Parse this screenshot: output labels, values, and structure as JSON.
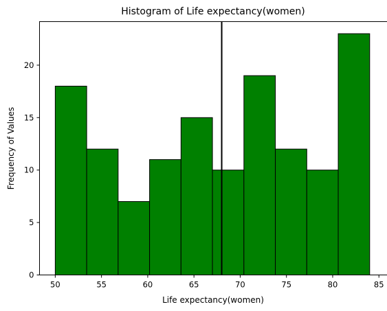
{
  "chart_data": {
    "type": "bar",
    "title": "Histogram of Life expectancy(women)",
    "xlabel": "Life expectancy(women)",
    "ylabel": "Frequency of Values",
    "xlim": [
      48.3,
      85.8
    ],
    "ylim": [
      0,
      24.15
    ],
    "x_ticks": [
      50,
      55,
      60,
      65,
      70,
      75,
      80,
      85
    ],
    "y_ticks": [
      0,
      5,
      10,
      15,
      20
    ],
    "bins": [
      {
        "start": 50.0,
        "end": 53.4,
        "count": 18
      },
      {
        "start": 53.4,
        "end": 56.8,
        "count": 12
      },
      {
        "start": 56.8,
        "end": 60.2,
        "count": 7
      },
      {
        "start": 60.2,
        "end": 63.6,
        "count": 11
      },
      {
        "start": 63.6,
        "end": 67.0,
        "count": 15
      },
      {
        "start": 67.0,
        "end": 70.4,
        "count": 10
      },
      {
        "start": 70.4,
        "end": 73.8,
        "count": 19
      },
      {
        "start": 73.8,
        "end": 77.2,
        "count": 12
      },
      {
        "start": 77.2,
        "end": 80.6,
        "count": 10
      },
      {
        "start": 80.6,
        "end": 84.0,
        "count": 23
      }
    ],
    "vertical_line": {
      "x": 68.0,
      "color": "#000000"
    },
    "bar_color": "#008000",
    "edge_color": "#000000",
    "grid": false,
    "legend": "none"
  }
}
